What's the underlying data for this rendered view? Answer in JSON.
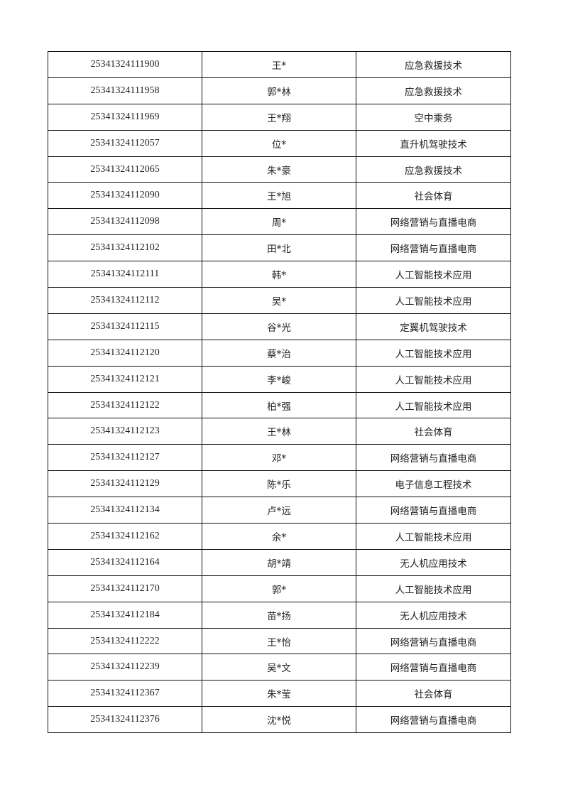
{
  "table": {
    "rows": [
      [
        "25341324111900",
        "王*",
        "应急救援技术"
      ],
      [
        "25341324111958",
        "郭*林",
        "应急救援技术"
      ],
      [
        "25341324111969",
        "王*翔",
        "空中乘务"
      ],
      [
        "25341324112057",
        "位*",
        "直升机驾驶技术"
      ],
      [
        "25341324112065",
        "朱*豪",
        "应急救援技术"
      ],
      [
        "25341324112090",
        "王*旭",
        "社会体育"
      ],
      [
        "25341324112098",
        "周*",
        "网络营销与直播电商"
      ],
      [
        "25341324112102",
        "田*北",
        "网络营销与直播电商"
      ],
      [
        "25341324112111",
        "韩*",
        "人工智能技术应用"
      ],
      [
        "25341324112112",
        "吴*",
        "人工智能技术应用"
      ],
      [
        "25341324112115",
        "谷*光",
        "定翼机驾驶技术"
      ],
      [
        "25341324112120",
        "蔡*治",
        "人工智能技术应用"
      ],
      [
        "25341324112121",
        "李*峻",
        "人工智能技术应用"
      ],
      [
        "25341324112122",
        "柏*强",
        "人工智能技术应用"
      ],
      [
        "25341324112123",
        "王*林",
        "社会体育"
      ],
      [
        "25341324112127",
        "邓*",
        "网络营销与直播电商"
      ],
      [
        "25341324112129",
        "陈*乐",
        "电子信息工程技术"
      ],
      [
        "25341324112134",
        "卢*远",
        "网络营销与直播电商"
      ],
      [
        "25341324112162",
        "余*",
        "人工智能技术应用"
      ],
      [
        "25341324112164",
        "胡*靖",
        "无人机应用技术"
      ],
      [
        "25341324112170",
        "郭*",
        "人工智能技术应用"
      ],
      [
        "25341324112184",
        "苗*扬",
        "无人机应用技术"
      ],
      [
        "25341324112222",
        "王*怡",
        "网络营销与直播电商"
      ],
      [
        "25341324112239",
        "吴*文",
        "网络营销与直播电商"
      ],
      [
        "25341324112367",
        "朱*莹",
        "社会体育"
      ],
      [
        "25341324112376",
        "沈*悦",
        "网络营销与直播电商"
      ]
    ]
  }
}
